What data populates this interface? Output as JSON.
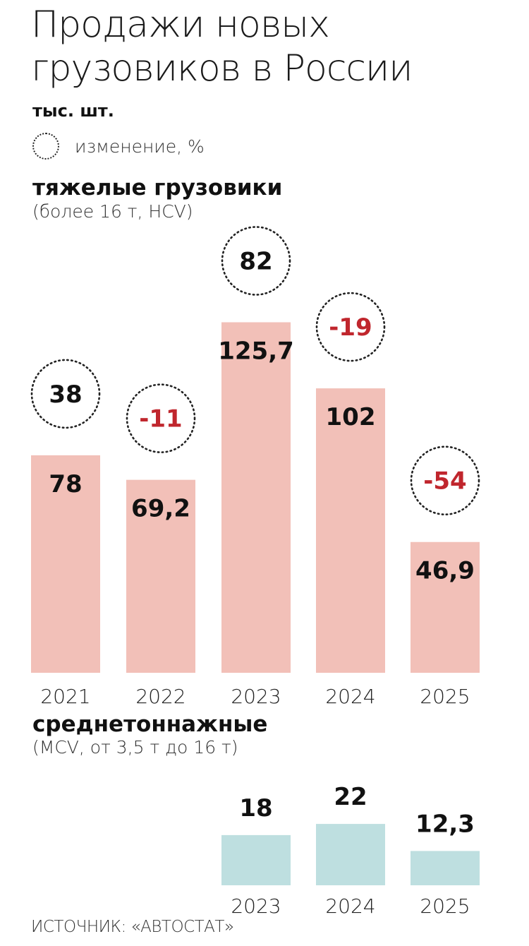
{
  "title_line1": "Продажи новых",
  "title_line2": "грузовиков в России",
  "units": "тыс. шт.",
  "legend_label": "изменение, %",
  "source": "ИСТОЧНИК: «АВТОСТАТ»",
  "colors": {
    "hcv_bar": "#f2c0b8",
    "mcv_bar": "#bedfe0",
    "negative": "#c0262d",
    "positive": "#111111"
  },
  "chart_data": [
    {
      "type": "bar",
      "title": "тяжелые грузовики",
      "subtitle": "(более 16 т, HCV)",
      "categories": [
        "2021",
        "2022",
        "2023",
        "2024",
        "2025"
      ],
      "values": [
        78,
        69.2,
        125.7,
        102,
        46.9
      ],
      "value_labels": [
        "78",
        "69,2",
        "125,7",
        "102",
        "46,9"
      ],
      "change_pct": [
        38,
        -11,
        82,
        -19,
        -54
      ],
      "change_labels": [
        "38",
        "-11",
        "82",
        "-19",
        "-54"
      ]
    },
    {
      "type": "bar",
      "title": "среднетоннажные",
      "subtitle": "(MCV, от 3,5 т до 16 т)",
      "categories": [
        "2023",
        "2024",
        "2025"
      ],
      "values": [
        18,
        22,
        12.3
      ],
      "value_labels": [
        "18",
        "22",
        "12,3"
      ]
    }
  ]
}
